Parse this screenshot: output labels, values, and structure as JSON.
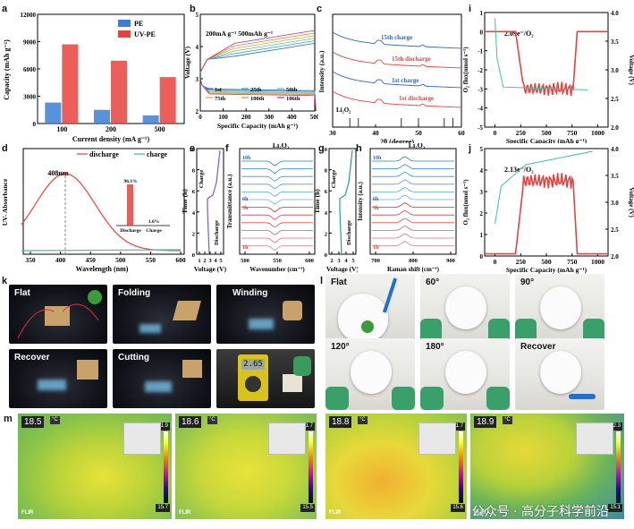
{
  "panels": {
    "a": "a",
    "b": "b",
    "c": "c",
    "d": "d",
    "e": "e",
    "f": "f",
    "g": "g",
    "h": "h",
    "i": "i",
    "j": "j",
    "k": "k",
    "l": "l",
    "m": "m"
  },
  "colors": {
    "pe": "#3a7fd6",
    "uvpe": "#e8423c",
    "teal": "#3cc0a8",
    "red": "#e8423c"
  },
  "chart_data": [
    {
      "id": "a",
      "type": "bar",
      "title": "",
      "xlabel": "Current density (mA g⁻¹)",
      "ylabel": "Capacity (mAh g⁻¹)",
      "categories": [
        "100",
        "200",
        "500"
      ],
      "ylim": [
        0,
        12000
      ],
      "yticks": [
        "0",
        "3000",
        "6000",
        "9000",
        "12000"
      ],
      "series": [
        {
          "name": "PE",
          "values": [
            2300,
            1500,
            900
          ]
        },
        {
          "name": "UV-PE",
          "values": [
            8700,
            6900,
            5100
          ]
        }
      ]
    },
    {
      "id": "b",
      "type": "line",
      "annotation": "200mA g⁻¹ 500mAh g⁻¹",
      "xlabel": "Specific Capacity (mAh g⁻¹)",
      "ylabel": "Voltage (V)",
      "xticks": [
        "0",
        "100",
        "200",
        "300",
        "400",
        "500"
      ],
      "yticks": [
        "2",
        "3",
        "4",
        "5"
      ],
      "xlim": [
        0,
        500
      ],
      "ylim": [
        2,
        5
      ],
      "legend": [
        "1st",
        "25th",
        "50th",
        "75th",
        "100th",
        "106th"
      ]
    },
    {
      "id": "c",
      "type": "line",
      "xlabel": "2θ (degree)",
      "ylabel": "Intensity (a.u.)",
      "xticks": [
        "30",
        "40",
        "50",
        "60"
      ],
      "xlim": [
        30,
        60
      ],
      "labels": [
        "15th charge",
        "15th discharge",
        "1st charge",
        "1st discharge",
        "Li₂O₂"
      ]
    },
    {
      "id": "d",
      "type": "line",
      "xlabel": "Wavelength (nm)",
      "ylabel": "UV- Absorbance",
      "xticks": [
        "350",
        "400",
        "450",
        "500",
        "550",
        "600"
      ],
      "xlim": [
        330,
        600
      ],
      "peak_label": "408nm",
      "legend": [
        "discharge",
        "charge"
      ],
      "inset": {
        "categories": [
          "Discharge",
          "Charge"
        ],
        "values": [
          96.1,
          1.6
        ],
        "labels": [
          "96.1%",
          "1.6%"
        ]
      }
    },
    {
      "id": "e",
      "type": "line",
      "xlabel": "Voltage (V)",
      "ylabel": "Time (h)",
      "xticks": [
        "1",
        "2",
        "3",
        "4",
        "5"
      ],
      "yticks": [
        "0",
        "2",
        "4",
        "6",
        "8",
        "10"
      ],
      "labels": [
        "Charge",
        "Discharge"
      ]
    },
    {
      "id": "f",
      "type": "line",
      "title": "Li₂O₂",
      "xlabel": "Wavenumber (cm⁻¹)",
      "ylabel": "Transmittance (a.u.)",
      "xticks": [
        "500",
        "550",
        "600"
      ],
      "labels": [
        "10h",
        "6h",
        "5h",
        "1h"
      ]
    },
    {
      "id": "g",
      "type": "line",
      "xlabel": "Voltage (V)",
      "ylabel": "Time (h)",
      "xticks": [
        "2",
        "3",
        "4",
        "5"
      ],
      "yticks": [
        "0",
        "2",
        "4",
        "6",
        "8",
        "10"
      ],
      "labels": [
        "Charge",
        "Discharge"
      ]
    },
    {
      "id": "h",
      "type": "line",
      "title": "Li₂O₂",
      "xlabel": "Raman shift (cm⁻¹)",
      "ylabel": "Intensity (a.u.)",
      "xticks": [
        "700",
        "800",
        "900"
      ],
      "labels": [
        "10h",
        "6h",
        "5h",
        "1h"
      ]
    },
    {
      "id": "i",
      "type": "line",
      "annotation": "2.09e⁻/O₂",
      "xlabel": "Specific Capacity (mAh g⁻¹)",
      "ylabel": "O₂ flux(nmol s⁻¹)",
      "ylabel2": "Voltage (V)",
      "xticks": [
        "0",
        "250",
        "500",
        "750",
        "1000"
      ],
      "yticks": [
        "-5",
        "-4",
        "-3",
        "-2",
        "-1",
        "0",
        "1"
      ],
      "yticks2": [
        "2.0",
        "2.5",
        "3.0",
        "3.5",
        "4.0"
      ],
      "ylim": [
        -5,
        1
      ],
      "ylim2": [
        2,
        4
      ],
      "xlim": [
        -100,
        1100
      ]
    },
    {
      "id": "j",
      "type": "line",
      "annotation": "2.13e⁻/O₂",
      "xlabel": "Specific Capacity (mAh g⁻¹)",
      "ylabel": "O₂ flux(nmol s⁻¹)",
      "ylabel2": "Voltage (V)",
      "xticks": [
        "0",
        "250",
        "500",
        "750",
        "1000"
      ],
      "yticks": [
        "0",
        "1",
        "2",
        "3",
        "4",
        "5"
      ],
      "yticks2": [
        "2.0",
        "2.5",
        "3.0",
        "3.5",
        "4.0"
      ],
      "ylim": [
        0,
        5
      ],
      "ylim2": [
        2,
        4
      ],
      "xlim": [
        -100,
        1100
      ]
    }
  ],
  "photos_k": [
    "Flat",
    "Folding",
    "Winding",
    "Recover",
    "Cutting"
  ],
  "meter_reading": "2.65",
  "photos_l": [
    "Flat",
    "60°",
    "90°",
    "120°",
    "180°",
    "Recover"
  ],
  "thermo": [
    {
      "temp": "18.5",
      "unit": "°C",
      "max": "21.9",
      "min": "15.7",
      "brand": "FLIR"
    },
    {
      "temp": "18.6",
      "unit": "°C",
      "max": "21.7",
      "min": "15.5",
      "brand": "FLIR"
    },
    {
      "temp": "18.8",
      "unit": "°C",
      "max": "21.7",
      "min": "15.6",
      "brand": "FLIR"
    },
    {
      "temp": "18.9",
      "unit": "°C",
      "max": "22.3",
      "min": "15.1",
      "brand": "FLIR"
    }
  ],
  "watermark": "公众号 · 高分子科学前沿"
}
